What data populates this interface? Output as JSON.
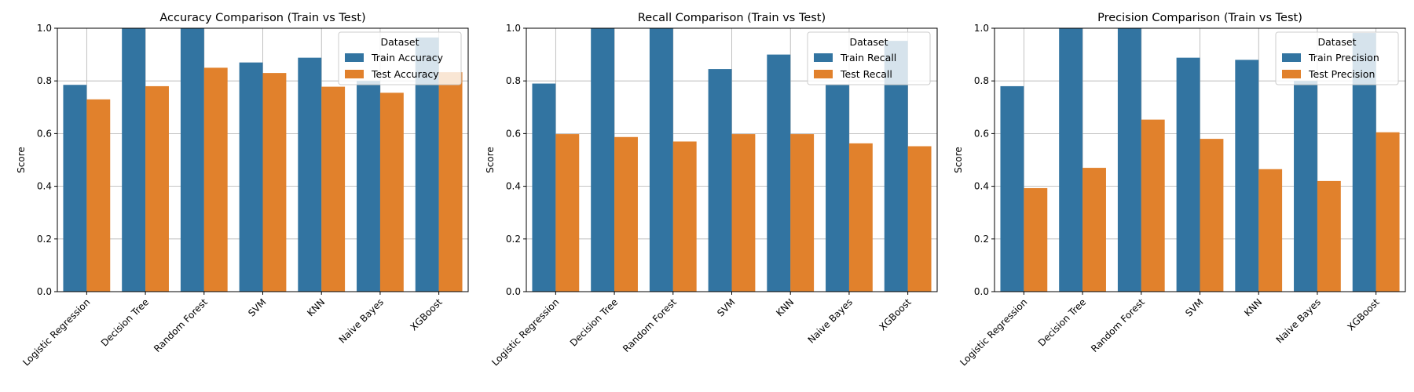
{
  "colors": {
    "train": "#3274a1",
    "test": "#e1812c",
    "grid": "#b0b0b0",
    "axis": "#000000"
  },
  "chart_data": [
    {
      "type": "bar",
      "title": "Accuracy Comparison (Train vs Test)",
      "xlabel": "",
      "ylabel": "Score",
      "ylim": [
        0,
        1.0
      ],
      "yticks": [
        "0.0",
        "0.2",
        "0.4",
        "0.6",
        "0.8",
        "1.0"
      ],
      "grid": true,
      "legend_title": "Dataset",
      "legend_position": "top-right",
      "categories": [
        "Logistic Regression",
        "Decision Tree",
        "Random Forest",
        "SVM",
        "KNN",
        "Naive Bayes",
        "XGBoost"
      ],
      "series": [
        {
          "name": "Train Accuracy",
          "values": [
            0.785,
            1.0,
            1.0,
            0.87,
            0.888,
            0.8,
            0.965
          ]
        },
        {
          "name": "Test Accuracy",
          "values": [
            0.73,
            0.78,
            0.85,
            0.83,
            0.778,
            0.755,
            0.833
          ]
        }
      ]
    },
    {
      "type": "bar",
      "title": "Recall Comparison (Train vs Test)",
      "xlabel": "",
      "ylabel": "Score",
      "ylim": [
        0,
        1.0
      ],
      "yticks": [
        "0.0",
        "0.2",
        "0.4",
        "0.6",
        "0.8",
        "1.0"
      ],
      "grid": true,
      "legend_title": "Dataset",
      "legend_position": "top-right",
      "categories": [
        "Logistic Regression",
        "Decision Tree",
        "Random Forest",
        "SVM",
        "KNN",
        "Naive Bayes",
        "XGBoost"
      ],
      "series": [
        {
          "name": "Train Recall",
          "values": [
            0.79,
            1.0,
            1.0,
            0.845,
            0.9,
            0.785,
            0.952
          ]
        },
        {
          "name": "Test Recall",
          "values": [
            0.598,
            0.587,
            0.57,
            0.598,
            0.598,
            0.563,
            0.552
          ]
        }
      ]
    },
    {
      "type": "bar",
      "title": "Precision Comparison (Train vs Test)",
      "xlabel": "",
      "ylabel": "Score",
      "ylim": [
        0,
        1.0
      ],
      "yticks": [
        "0.0",
        "0.2",
        "0.4",
        "0.6",
        "0.8",
        "1.0"
      ],
      "grid": true,
      "legend_title": "Dataset",
      "legend_position": "top-right",
      "categories": [
        "Logistic Regression",
        "Decision Tree",
        "Random Forest",
        "SVM",
        "KNN",
        "Naive Bayes",
        "XGBoost"
      ],
      "series": [
        {
          "name": "Train Precision",
          "values": [
            0.78,
            1.0,
            1.0,
            0.888,
            0.88,
            0.8,
            0.982
          ]
        },
        {
          "name": "Test Precision",
          "values": [
            0.393,
            0.47,
            0.653,
            0.58,
            0.465,
            0.42,
            0.605
          ]
        }
      ]
    }
  ]
}
